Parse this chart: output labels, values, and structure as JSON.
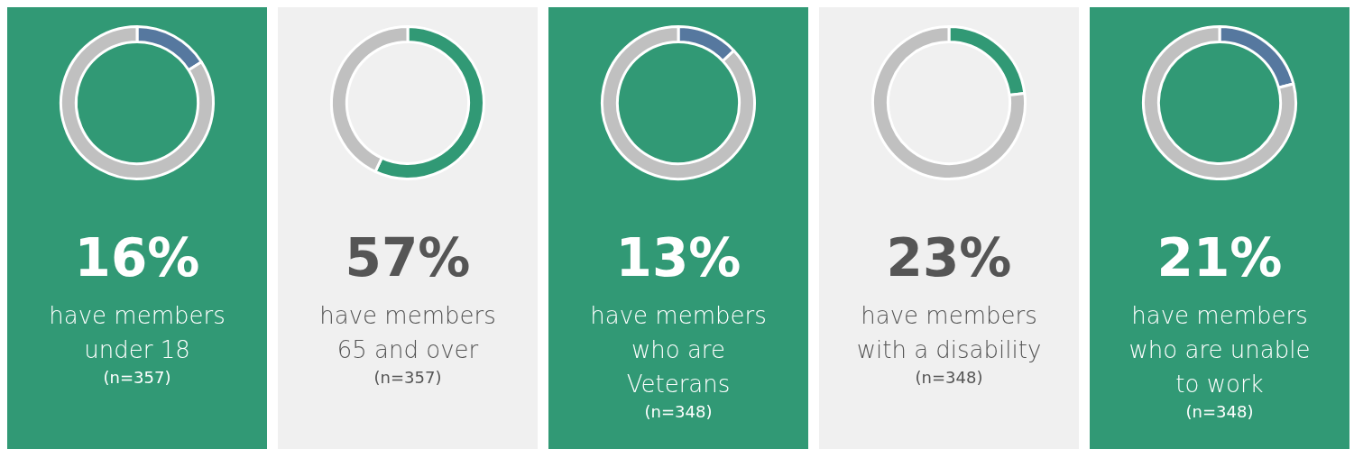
{
  "chart_data": [
    {
      "type": "donut",
      "title": "16%",
      "subtitle": "have members under 18",
      "categories": [
        null,
        null
      ],
      "values": [
        16,
        84
      ],
      "colors": [
        "#56789f",
        "#c0c0c0"
      ],
      "annotations": [
        "(n=357)"
      ]
    },
    {
      "type": "donut",
      "title": "57%",
      "subtitle": "have members 65 and over",
      "categories": [
        null,
        null
      ],
      "values": [
        57,
        43
      ],
      "colors": [
        "#319975",
        "#c0c0c0"
      ],
      "annotations": [
        "(n=357)"
      ]
    },
    {
      "type": "donut",
      "title": "13%",
      "subtitle": "have members who are Veterans",
      "categories": [
        null,
        null
      ],
      "values": [
        13,
        87
      ],
      "colors": [
        "#56789f",
        "#c0c0c0"
      ],
      "annotations": [
        "(n=348)"
      ]
    },
    {
      "type": "donut",
      "title": "23%",
      "subtitle": "have members with a disability",
      "categories": [
        null,
        null
      ],
      "values": [
        23,
        77
      ],
      "colors": [
        "#319975",
        "#c0c0c0"
      ],
      "annotations": [
        "(n=348)"
      ]
    },
    {
      "type": "donut",
      "title": "21%",
      "subtitle": "have members who are unable to work",
      "categories": [
        null,
        null
      ],
      "values": [
        21,
        79
      ],
      "colors": [
        "#56789f",
        "#c0c0c0"
      ],
      "annotations": [
        "(n=348)"
      ]
    }
  ]
}
